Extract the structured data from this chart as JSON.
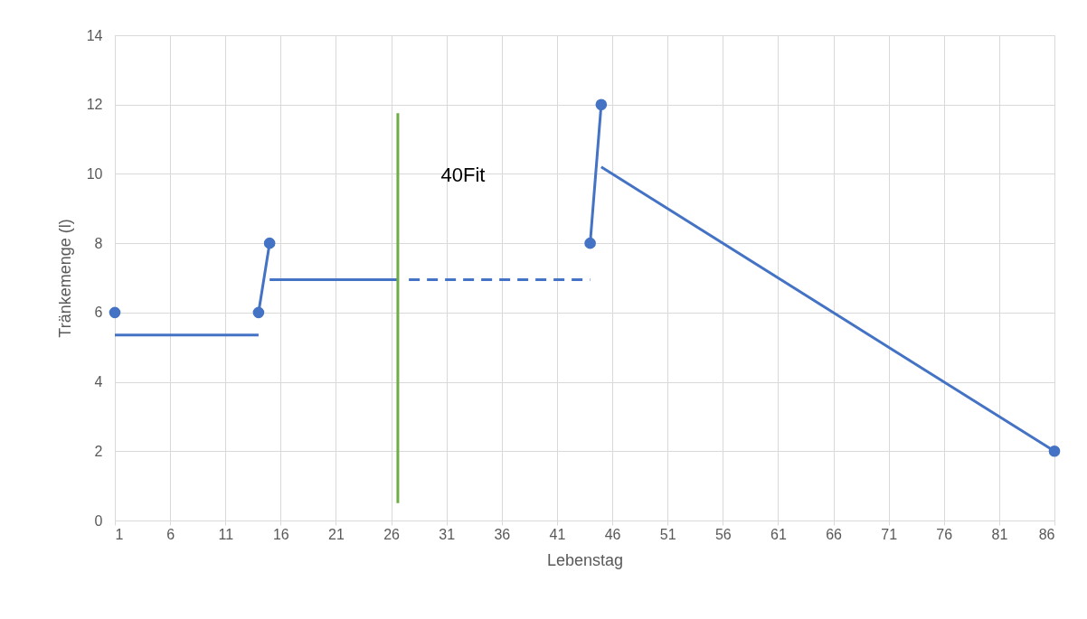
{
  "chart_data": {
    "type": "scatter",
    "xlabel": "Lebenstag",
    "ylabel": "Tränkemenge (l)",
    "xlim": [
      1,
      86
    ],
    "xticks": [
      1,
      6,
      11,
      16,
      21,
      26,
      31,
      36,
      41,
      46,
      51,
      56,
      61,
      66,
      71,
      76,
      81,
      86
    ],
    "ylim": [
      0,
      14
    ],
    "yticks": [
      0,
      2,
      4,
      6,
      8,
      10,
      12,
      14
    ],
    "grid": true,
    "marker": "circle",
    "annotations": [
      "40Fit"
    ],
    "series": [
      {
        "type": "line",
        "color": "#4472c4",
        "x": [
          14,
          15
        ],
        "values": [
          6,
          8
        ],
        "marker": "none"
      },
      {
        "type": "line",
        "color": "#4472c4",
        "x": [
          44,
          45
        ],
        "values": [
          8,
          12
        ],
        "marker": "none"
      },
      {
        "type": "line",
        "color": "#4472c4",
        "x": [
          1,
          14
        ],
        "values": [
          5.35,
          5.35
        ],
        "marker": "none"
      },
      {
        "type": "line",
        "color": "#4472c4",
        "x": [
          15,
          26.6
        ],
        "values": [
          6.95,
          6.95
        ],
        "marker": "none"
      },
      {
        "type": "line",
        "color": "#4472c4",
        "x": [
          27.6,
          44
        ],
        "values": [
          6.95,
          6.95
        ],
        "marker": "none",
        "line_style": "dashed"
      },
      {
        "type": "line",
        "color": "#4472c4",
        "x": [
          45,
          86
        ],
        "values": [
          10.2,
          2
        ],
        "marker": "none"
      },
      {
        "type": "line",
        "color": "#70ad47",
        "x": [
          26.6,
          26.6
        ],
        "values": [
          0.5,
          11.75
        ],
        "marker": "none"
      },
      {
        "color": "#4472c4",
        "x": [
          1,
          14,
          15,
          44,
          45,
          86
        ],
        "values": [
          6,
          6,
          8,
          8,
          12,
          2
        ]
      }
    ]
  }
}
